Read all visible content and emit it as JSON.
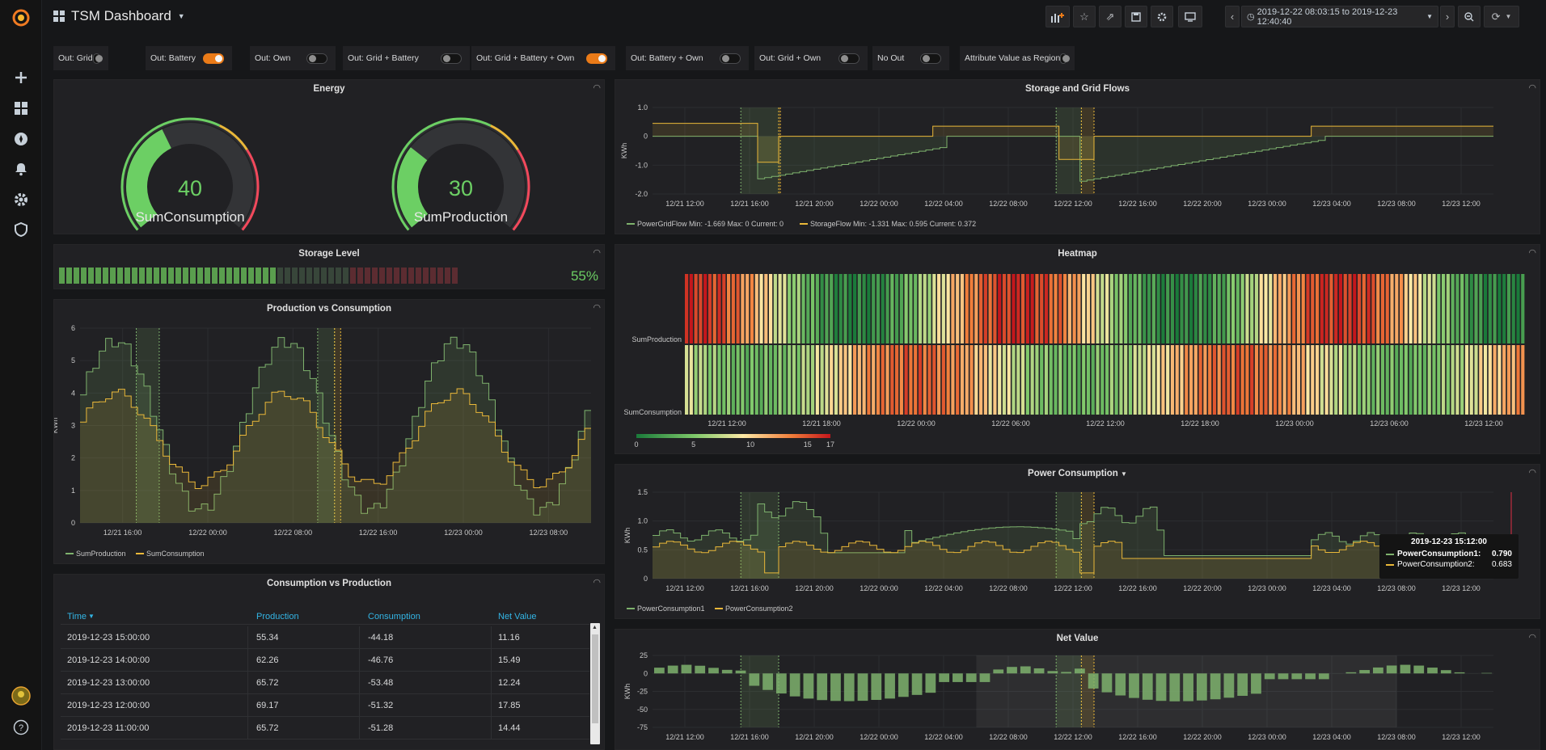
{
  "app": {
    "title": "TSM Dashboard",
    "time_range": "2019-12-22 08:03:15 to 2019-12-23 12:40:40"
  },
  "toggles": [
    {
      "label": "Out: Grid",
      "on": false
    },
    {
      "label": "Out: Battery",
      "on": true
    },
    {
      "label": "Out: Own",
      "on": false
    },
    {
      "label": "Out: Grid + Battery",
      "on": false
    },
    {
      "label": "Out: Grid + Battery + Own",
      "on": true
    },
    {
      "label": "Out: Battery + Own",
      "on": false
    },
    {
      "label": "Out: Grid + Own",
      "on": false
    },
    {
      "label": "No Out",
      "on": false
    },
    {
      "label": "Attribute Value as Region",
      "on": false
    }
  ],
  "energy": {
    "title": "Energy",
    "gauges": [
      {
        "value": "40",
        "label": "SumConsumption",
        "fraction": 0.4
      },
      {
        "value": "30",
        "label": "SumProduction",
        "fraction": 0.3
      }
    ]
  },
  "storage_level": {
    "title": "Storage Level",
    "value_text": "55%",
    "fraction": 0.55
  },
  "prod_vs_cons": {
    "title": "Production vs Consumption",
    "ylabel": "KWh",
    "yticks": [
      "0",
      "1",
      "2",
      "3",
      "4",
      "5",
      "6"
    ],
    "xticks": [
      "12/21 16:00",
      "12/22 00:00",
      "12/22 08:00",
      "12/22 16:00",
      "12/23 00:00",
      "12/23 08:00"
    ],
    "legend": [
      "SumProduction",
      "SumConsumption"
    ]
  },
  "table": {
    "title": "Consumption vs Production",
    "columns": [
      "Time",
      "Production",
      "Consumption",
      "Net Value"
    ],
    "rows": [
      [
        "2019-12-23 15:00:00",
        "55.34",
        "-44.18",
        "11.16"
      ],
      [
        "2019-12-23 14:00:00",
        "62.26",
        "-46.76",
        "15.49"
      ],
      [
        "2019-12-23 13:00:00",
        "65.72",
        "-53.48",
        "12.24"
      ],
      [
        "2019-12-23 12:00:00",
        "69.17",
        "-51.32",
        "17.85"
      ],
      [
        "2019-12-23 11:00:00",
        "65.72",
        "-51.28",
        "14.44"
      ]
    ]
  },
  "storage_flows": {
    "title": "Storage and Grid Flows",
    "ylabel": "KWh",
    "yticks": [
      "1.0",
      "0",
      "-1.0",
      "-2.0"
    ],
    "xticks": [
      "12/21 12:00",
      "12/21 16:00",
      "12/21 20:00",
      "12/22 00:00",
      "12/22 04:00",
      "12/22 08:00",
      "12/22 12:00",
      "12/22 16:00",
      "12/22 20:00",
      "12/23 00:00",
      "12/23 04:00",
      "12/23 08:00",
      "12/23 12:00"
    ],
    "legend": [
      "PowerGridFlow  Min: -1.669  Max: 0  Current: 0",
      "StorageFlow  Min: -1.331  Max: 0.595  Current: 0.372"
    ]
  },
  "heatmap": {
    "title": "Heatmap",
    "ylabels": [
      "SumProduction",
      "SumConsumption"
    ],
    "xticks": [
      "12/21 12:00",
      "12/21 18:00",
      "12/22 00:00",
      "12/22 06:00",
      "12/22 12:00",
      "12/22 18:00",
      "12/23 00:00",
      "12/23 06:00",
      "12/23 12:00"
    ],
    "scale_ticks": [
      "0",
      "5",
      "10",
      "15",
      "17"
    ]
  },
  "power_consumption": {
    "title": "Power Consumption",
    "ylabel": "KWh",
    "yticks": [
      "1.5",
      "1.0",
      "0.5",
      "0"
    ],
    "xticks": [
      "12/21 12:00",
      "12/21 16:00",
      "12/21 20:00",
      "12/22 00:00",
      "12/22 04:00",
      "12/22 08:00",
      "12/22 12:00",
      "12/22 16:00",
      "12/22 20:00",
      "12/23 00:00",
      "12/23 04:00",
      "12/23 08:00",
      "12/23 12:00"
    ],
    "legend": [
      "PowerConsumption1",
      "PowerConsumption2"
    ],
    "tooltip": {
      "time": "2019-12-23 15:12:00",
      "rows": [
        {
          "name": "PowerConsumption1:",
          "value": "0.790"
        },
        {
          "name": "PowerConsumption2:",
          "value": "0.683"
        }
      ]
    }
  },
  "net_value": {
    "title": "Net Value",
    "ylabel": "KWh",
    "yticks": [
      "25",
      "0",
      "-25",
      "-50",
      "-75"
    ],
    "xticks": [
      "12/21 12:00",
      "12/21 16:00",
      "12/21 20:00",
      "12/22 00:00",
      "12/22 04:00",
      "12/22 08:00",
      "12/22 12:00",
      "12/22 16:00",
      "12/22 20:00",
      "12/23 00:00",
      "12/23 04:00",
      "12/23 08:00",
      "12/23 12:00"
    ]
  },
  "colors": {
    "green": "#7eb26d",
    "yellow": "#eab839",
    "orange": "#eb7b18",
    "accent_blue": "#33b5e5"
  }
}
